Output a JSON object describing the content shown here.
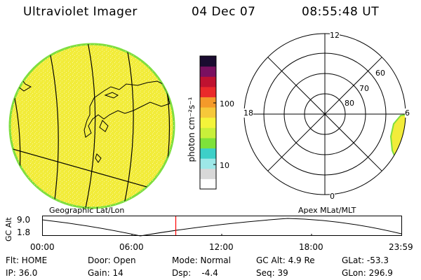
{
  "header": {
    "title": "Ultraviolet Imager",
    "date": "04 Dec 07",
    "time": "08:55:48 UT"
  },
  "geo_panel": {
    "label": "Geographic Lat/Lon",
    "colors": {
      "disk_fill": "#f2ec3a",
      "disk_edge": "#7ede3e",
      "noise": "#ffffff",
      "lines": "#000000"
    }
  },
  "colorbar": {
    "unit_label": "photon cm⁻²s⁻¹",
    "tick_labels": [
      "100",
      "10"
    ],
    "colors_bottom_to_top": [
      "#ffffff",
      "#d8d8d8",
      "#9de8e8",
      "#3dd0c8",
      "#7ee23a",
      "#c8f03a",
      "#f4f43a",
      "#f6c83a",
      "#f49a2a",
      "#ea2a2a",
      "#bf1230",
      "#7a1060",
      "#1a0c30"
    ]
  },
  "polar_panel": {
    "label": "Apex MLat/MLT",
    "mlt_labels": {
      "top": "12",
      "left": "18",
      "right": "6",
      "bottom": "0"
    },
    "ring_labels": [
      "60",
      "70",
      "80"
    ],
    "colors": {
      "patch_fill": "#f2ec3a",
      "patch_edge": "#7ede3e"
    }
  },
  "altitude_plot": {
    "ylabel": "GC Alt",
    "yticks": [
      "9.0",
      "1.8"
    ],
    "xticks": [
      "00:00",
      "06:00",
      "12:00",
      "18:00",
      "23:59"
    ],
    "marker_time_hours": 8.93,
    "colors": {
      "line": "#000000",
      "marker": "#ff0000"
    }
  },
  "status": {
    "filter": "Flt: HOME",
    "ip": "IP: 36.0",
    "door": "Door: Open",
    "gain": "Gain: 14",
    "mode": "Mode: Normal",
    "dsp": "Dsp:    -4.4",
    "gc_alt": "GC Alt: 4.9 Re",
    "seq": "Seq: 39",
    "glat": "GLat: -53.3",
    "glon": "GLon: 296.9"
  }
}
